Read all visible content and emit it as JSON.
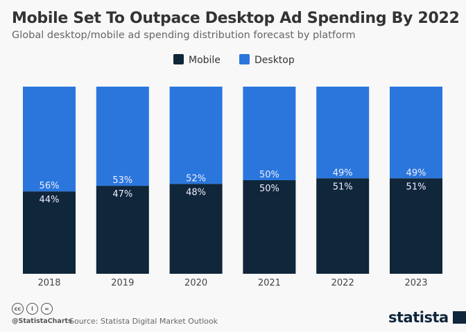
{
  "chart_data": {
    "type": "bar",
    "stacked": true,
    "title": "Mobile Set To Outpace Desktop Ad Spending By 2022",
    "subtitle": "Global desktop/mobile ad spending distribution forecast by platform",
    "categories": [
      "2018",
      "2019",
      "2020",
      "2021",
      "2022",
      "2023"
    ],
    "series": [
      {
        "name": "Mobile",
        "color": "#10263a",
        "values": [
          44,
          47,
          48,
          50,
          51,
          51
        ],
        "labels": [
          "44%",
          "47%",
          "48%",
          "50%",
          "51%",
          "51%"
        ]
      },
      {
        "name": "Desktop",
        "color": "#2a76dd",
        "values": [
          56,
          53,
          52,
          50,
          49,
          49
        ],
        "labels": [
          "56%",
          "53%",
          "52%",
          "50%",
          "49%",
          "49%"
        ]
      }
    ],
    "ylim": [
      0,
      100
    ],
    "grid": false,
    "legend": "top-center",
    "xlabel": "",
    "ylabel": ""
  },
  "footer": {
    "handle": "@StatistaCharts",
    "source": "Source: Statista Digital Market Outlook",
    "logo": "statista",
    "license_icons": [
      "cc",
      "by",
      "nd"
    ]
  }
}
